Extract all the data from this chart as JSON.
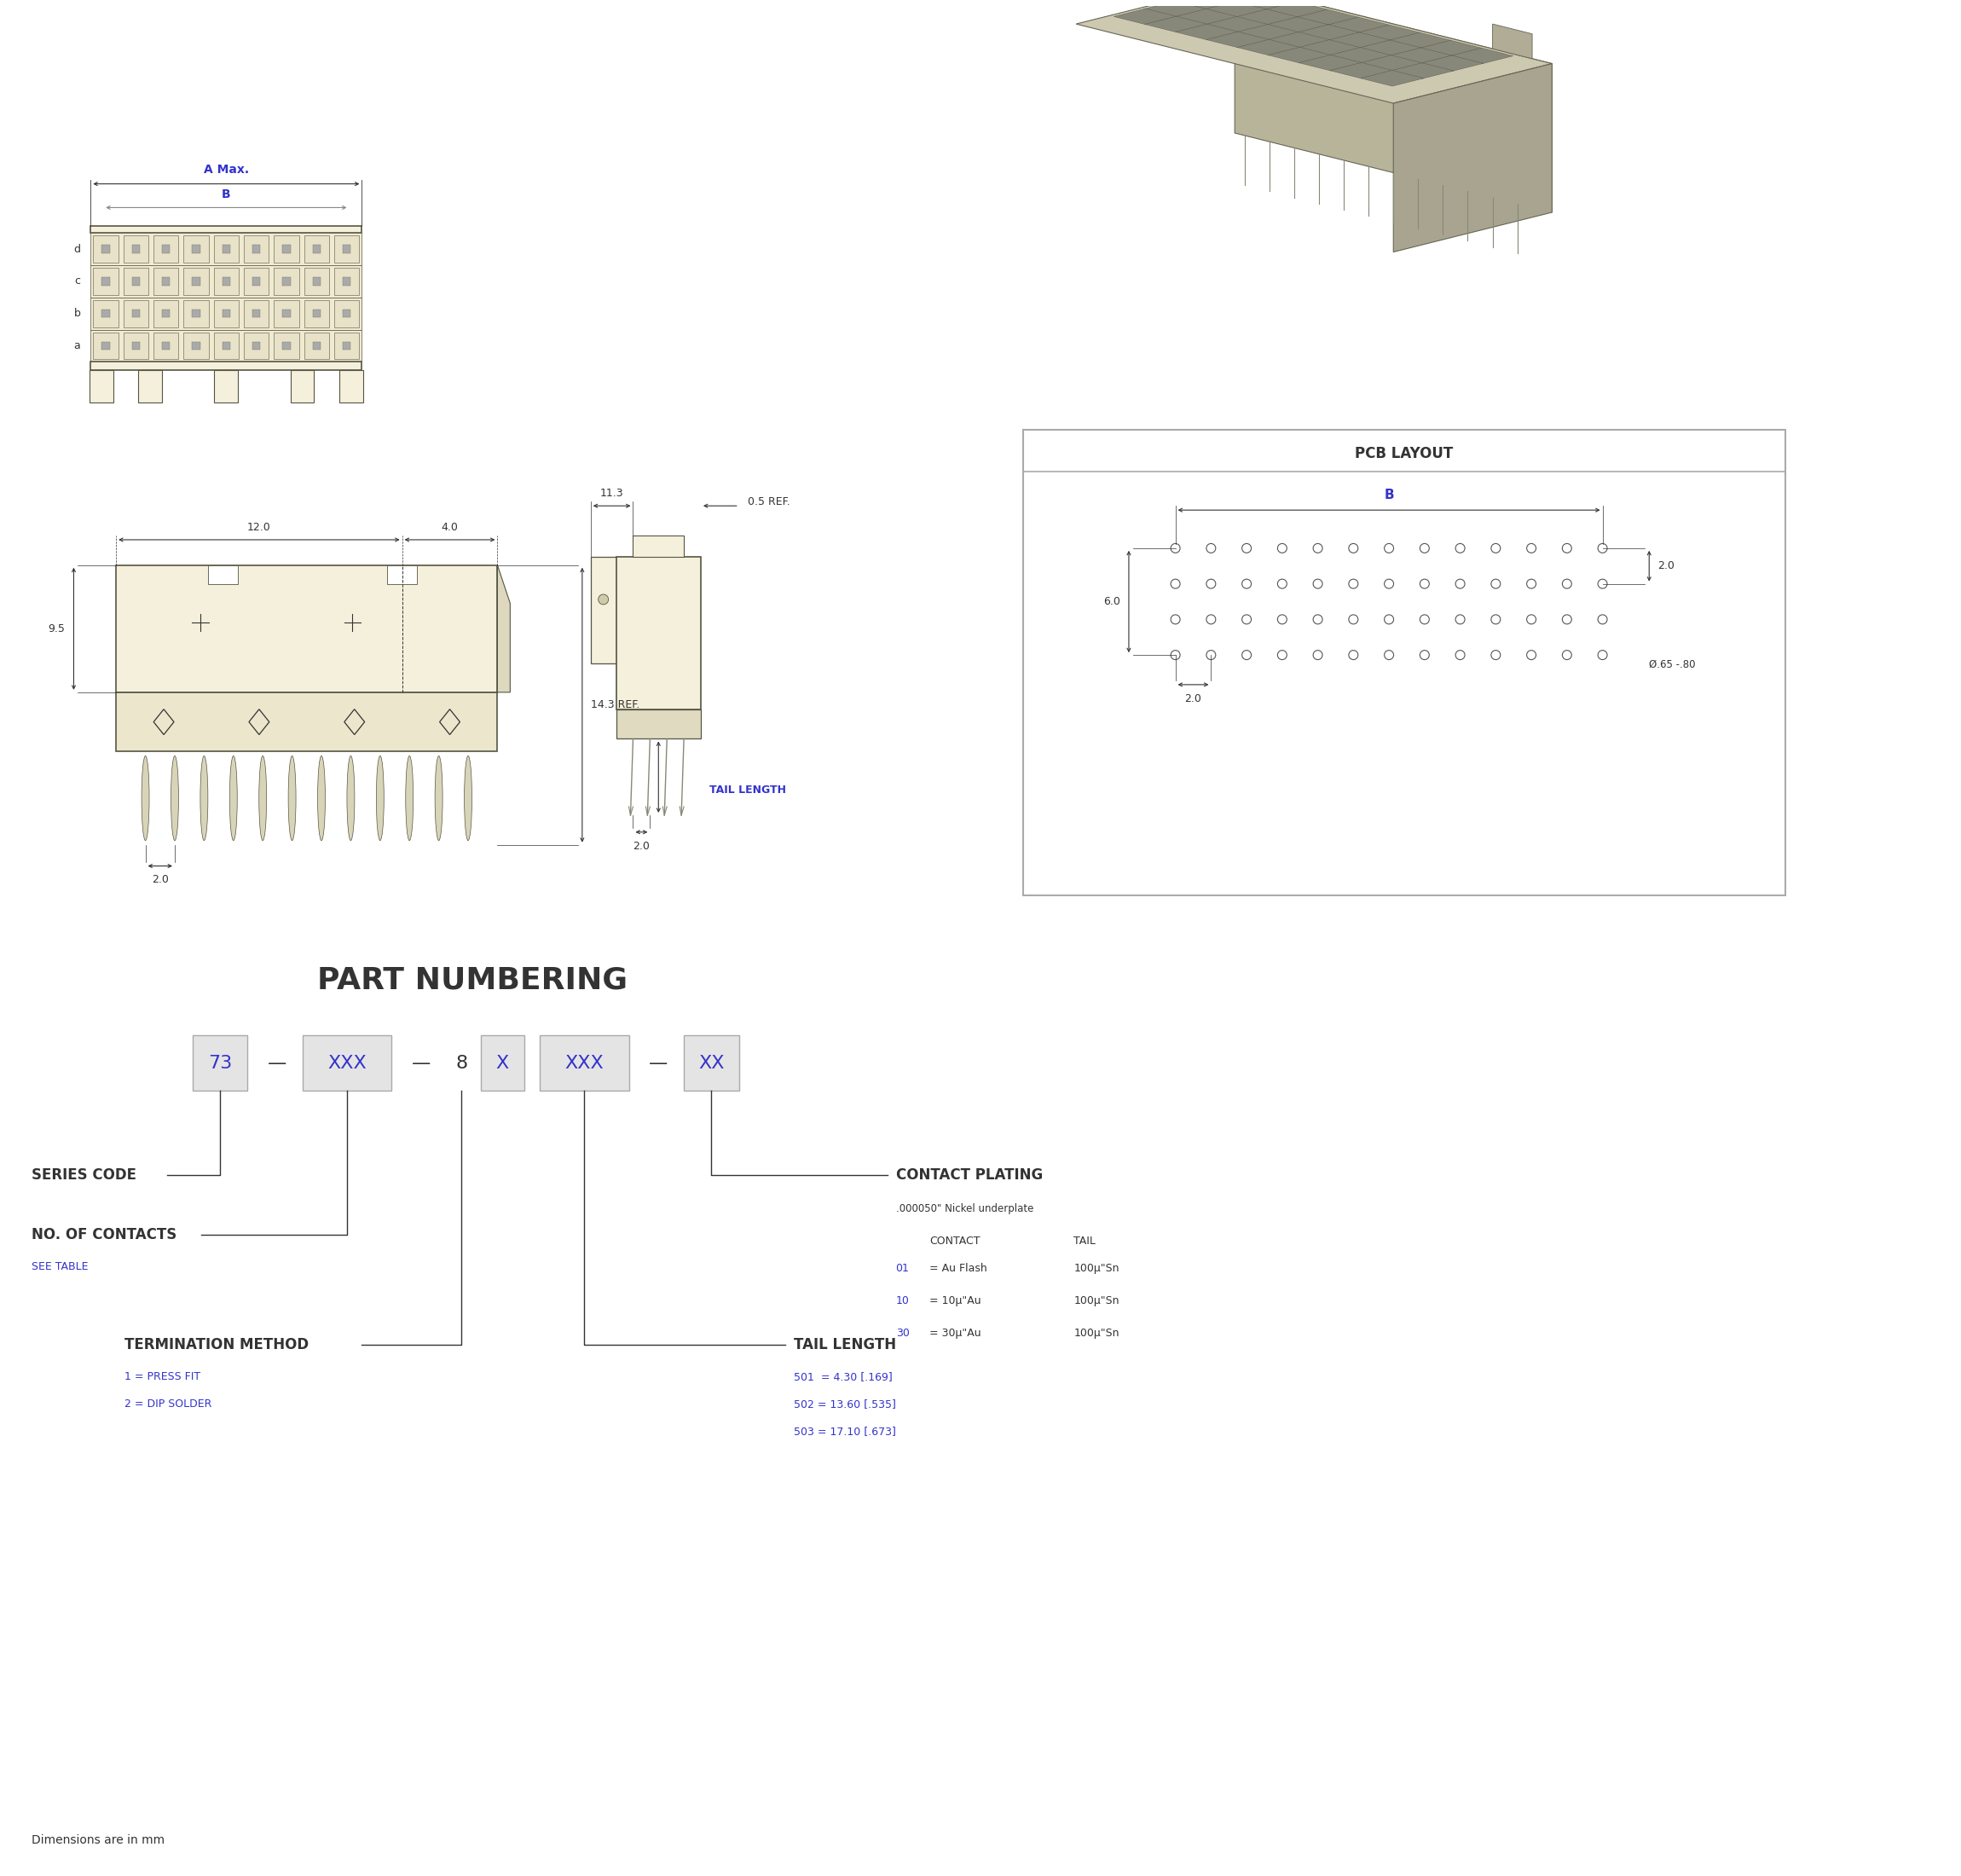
{
  "bg_color": "#ffffff",
  "blue_color": "#3333CC",
  "dim_color": "#333333",
  "connector_fill": "#f5f0dc",
  "connector_edge": "#555544",
  "part_numbering_title": "PART NUMBERING",
  "dimensions_note": "Dimensions are in mm",
  "series_code_label": "SERIES CODE",
  "no_contacts_label": "NO. OF CONTACTS",
  "see_table_label": "SEE TABLE",
  "termination_label": "TERMINATION METHOD",
  "term_1": "1 = PRESS FIT",
  "term_2": "2 = DIP SOLDER",
  "tail_length_label": "TAIL LENGTH",
  "tail_501": "501  = 4.30 [.169]",
  "tail_502": "502 = 13.60 [.535]",
  "tail_503": "503 = 17.10 [.673]",
  "contact_plating_label": "CONTACT PLATING",
  "nickel_label": ".000050\" Nickel underplate",
  "contact_col": "CONTACT",
  "tail_col": "TAIL",
  "pn_73": "73",
  "pn_xxx1": "XXX",
  "pn_8": "8",
  "pn_x": "X",
  "pn_xxx2": "XXX",
  "pn_xx": "XX",
  "dim_12": "12.0",
  "dim_4": "4.0",
  "dim_9_5": "9.5",
  "dim_14_3": "14.3 REF.",
  "dim_2_0_front": "2.0",
  "dim_11_3": "11.3",
  "dim_0_5": "0.5 REF.",
  "dim_tail_length": "TAIL LENGTH",
  "dim_2_0_side": "2.0",
  "dim_A_max": "A Max.",
  "dim_B_top": "B",
  "dim_B_pcb": "B",
  "pcb_layout_title": "PCB LAYOUT",
  "dim_6_0": "6.0",
  "dim_2_0_pcb": "2.0",
  "dim_2_0_pcb2": "2.0",
  "dim_circle": "Ø.65 -.80"
}
